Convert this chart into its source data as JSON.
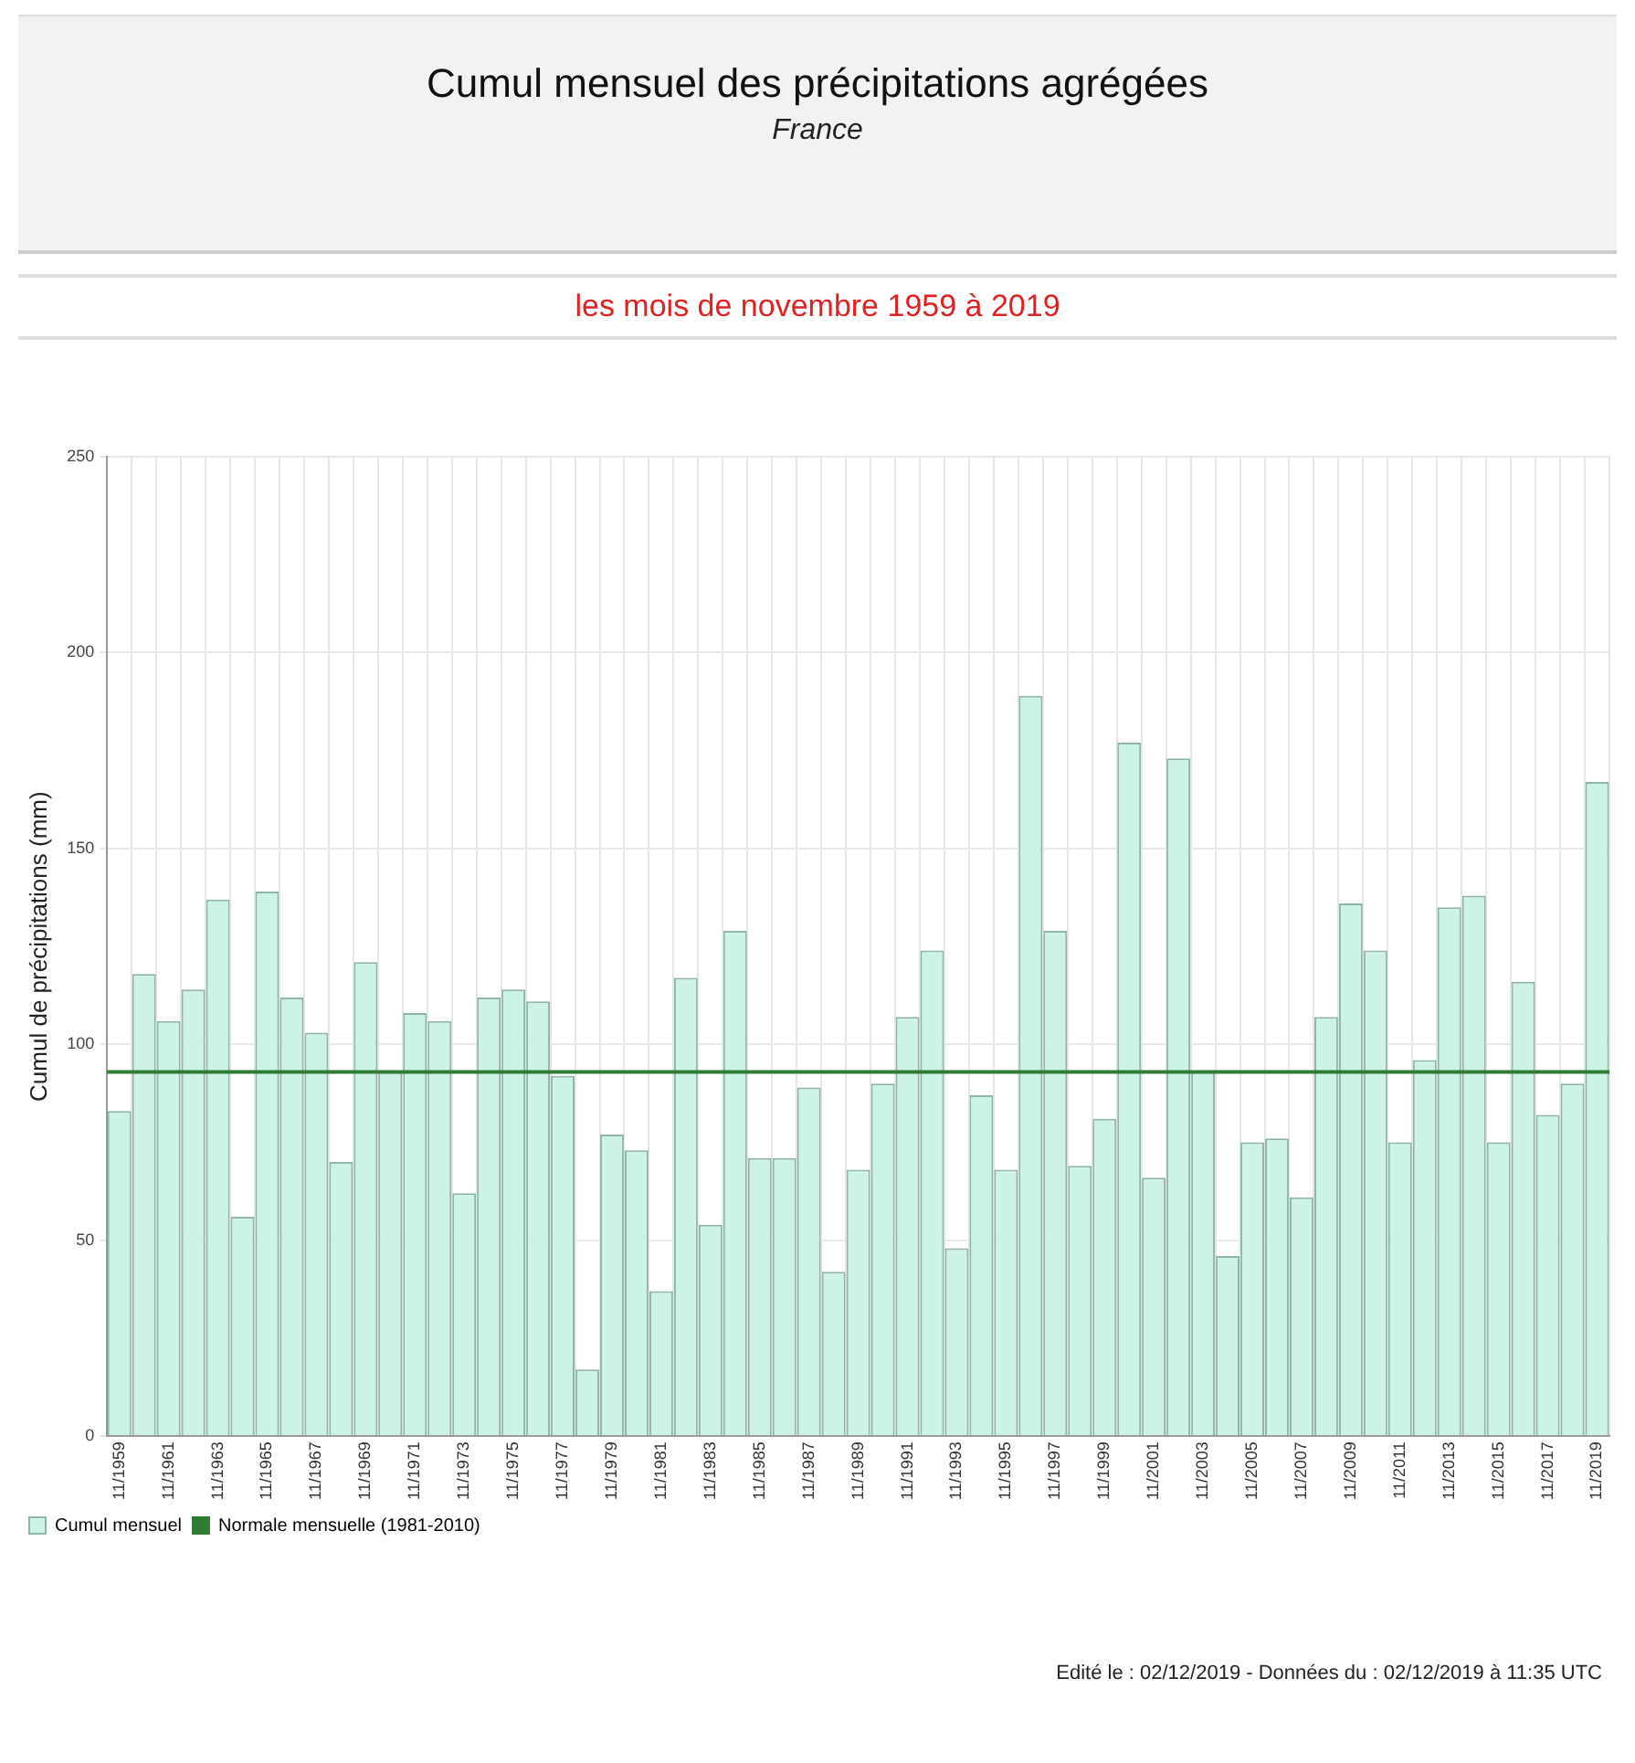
{
  "chart_data": {
    "type": "bar",
    "title": "Cumul mensuel des précipitations agrégées",
    "subtitle": "France",
    "ylabel": "Cumul de précipitations (mm)",
    "annotations": [
      "les mois de novembre 1959 à 2019",
      "Edité le : 02/12/2019 - Données du : 02/12/2019 à 11:35 UTC"
    ],
    "categories": [
      "11/1959",
      null,
      "11/1961",
      null,
      "11/1963",
      null,
      "11/1965",
      null,
      "11/1967",
      null,
      "11/1969",
      null,
      "11/1971",
      null,
      "11/1973",
      null,
      "11/1975",
      null,
      "11/1977",
      null,
      "11/1979",
      null,
      "11/1981",
      null,
      "11/1983",
      null,
      "11/1985",
      null,
      "11/1987",
      null,
      "11/1989",
      null,
      "11/1991",
      null,
      "11/1993",
      null,
      "11/1995",
      null,
      "11/1997",
      null,
      "11/1999",
      null,
      "11/2001",
      null,
      "11/2003",
      null,
      "11/2005",
      null,
      "11/2007",
      null,
      "11/2009",
      null,
      "11/2011",
      null,
      "11/2013",
      null,
      "11/2015",
      null,
      "11/2017",
      null,
      "11/2019"
    ],
    "series": [
      {
        "name": "Cumul mensuel",
        "color": "#cdf3e5",
        "values": [
          83,
          118,
          106,
          114,
          137,
          56,
          139,
          112,
          103,
          70,
          121,
          93,
          108,
          106,
          62,
          112,
          114,
          111,
          92,
          17,
          77,
          73,
          37,
          117,
          54,
          129,
          71,
          71,
          89,
          42,
          68,
          90,
          107,
          124,
          48,
          87,
          68,
          189,
          129,
          69,
          81,
          177,
          66,
          173,
          93,
          46,
          75,
          76,
          61,
          107,
          136,
          124,
          75,
          96,
          135,
          138,
          75,
          116,
          82,
          90,
          167
        ]
      }
    ],
    "ylim": [
      0,
      250
    ],
    "yticks": [
      0,
      50,
      100,
      150,
      200,
      250
    ],
    "ref_lines": [
      {
        "axis": "y",
        "value": 93,
        "label": "Normale mensuelle (1981-2010)",
        "color": "#2e7d32"
      }
    ],
    "grid": true,
    "legend": "bottom left"
  }
}
